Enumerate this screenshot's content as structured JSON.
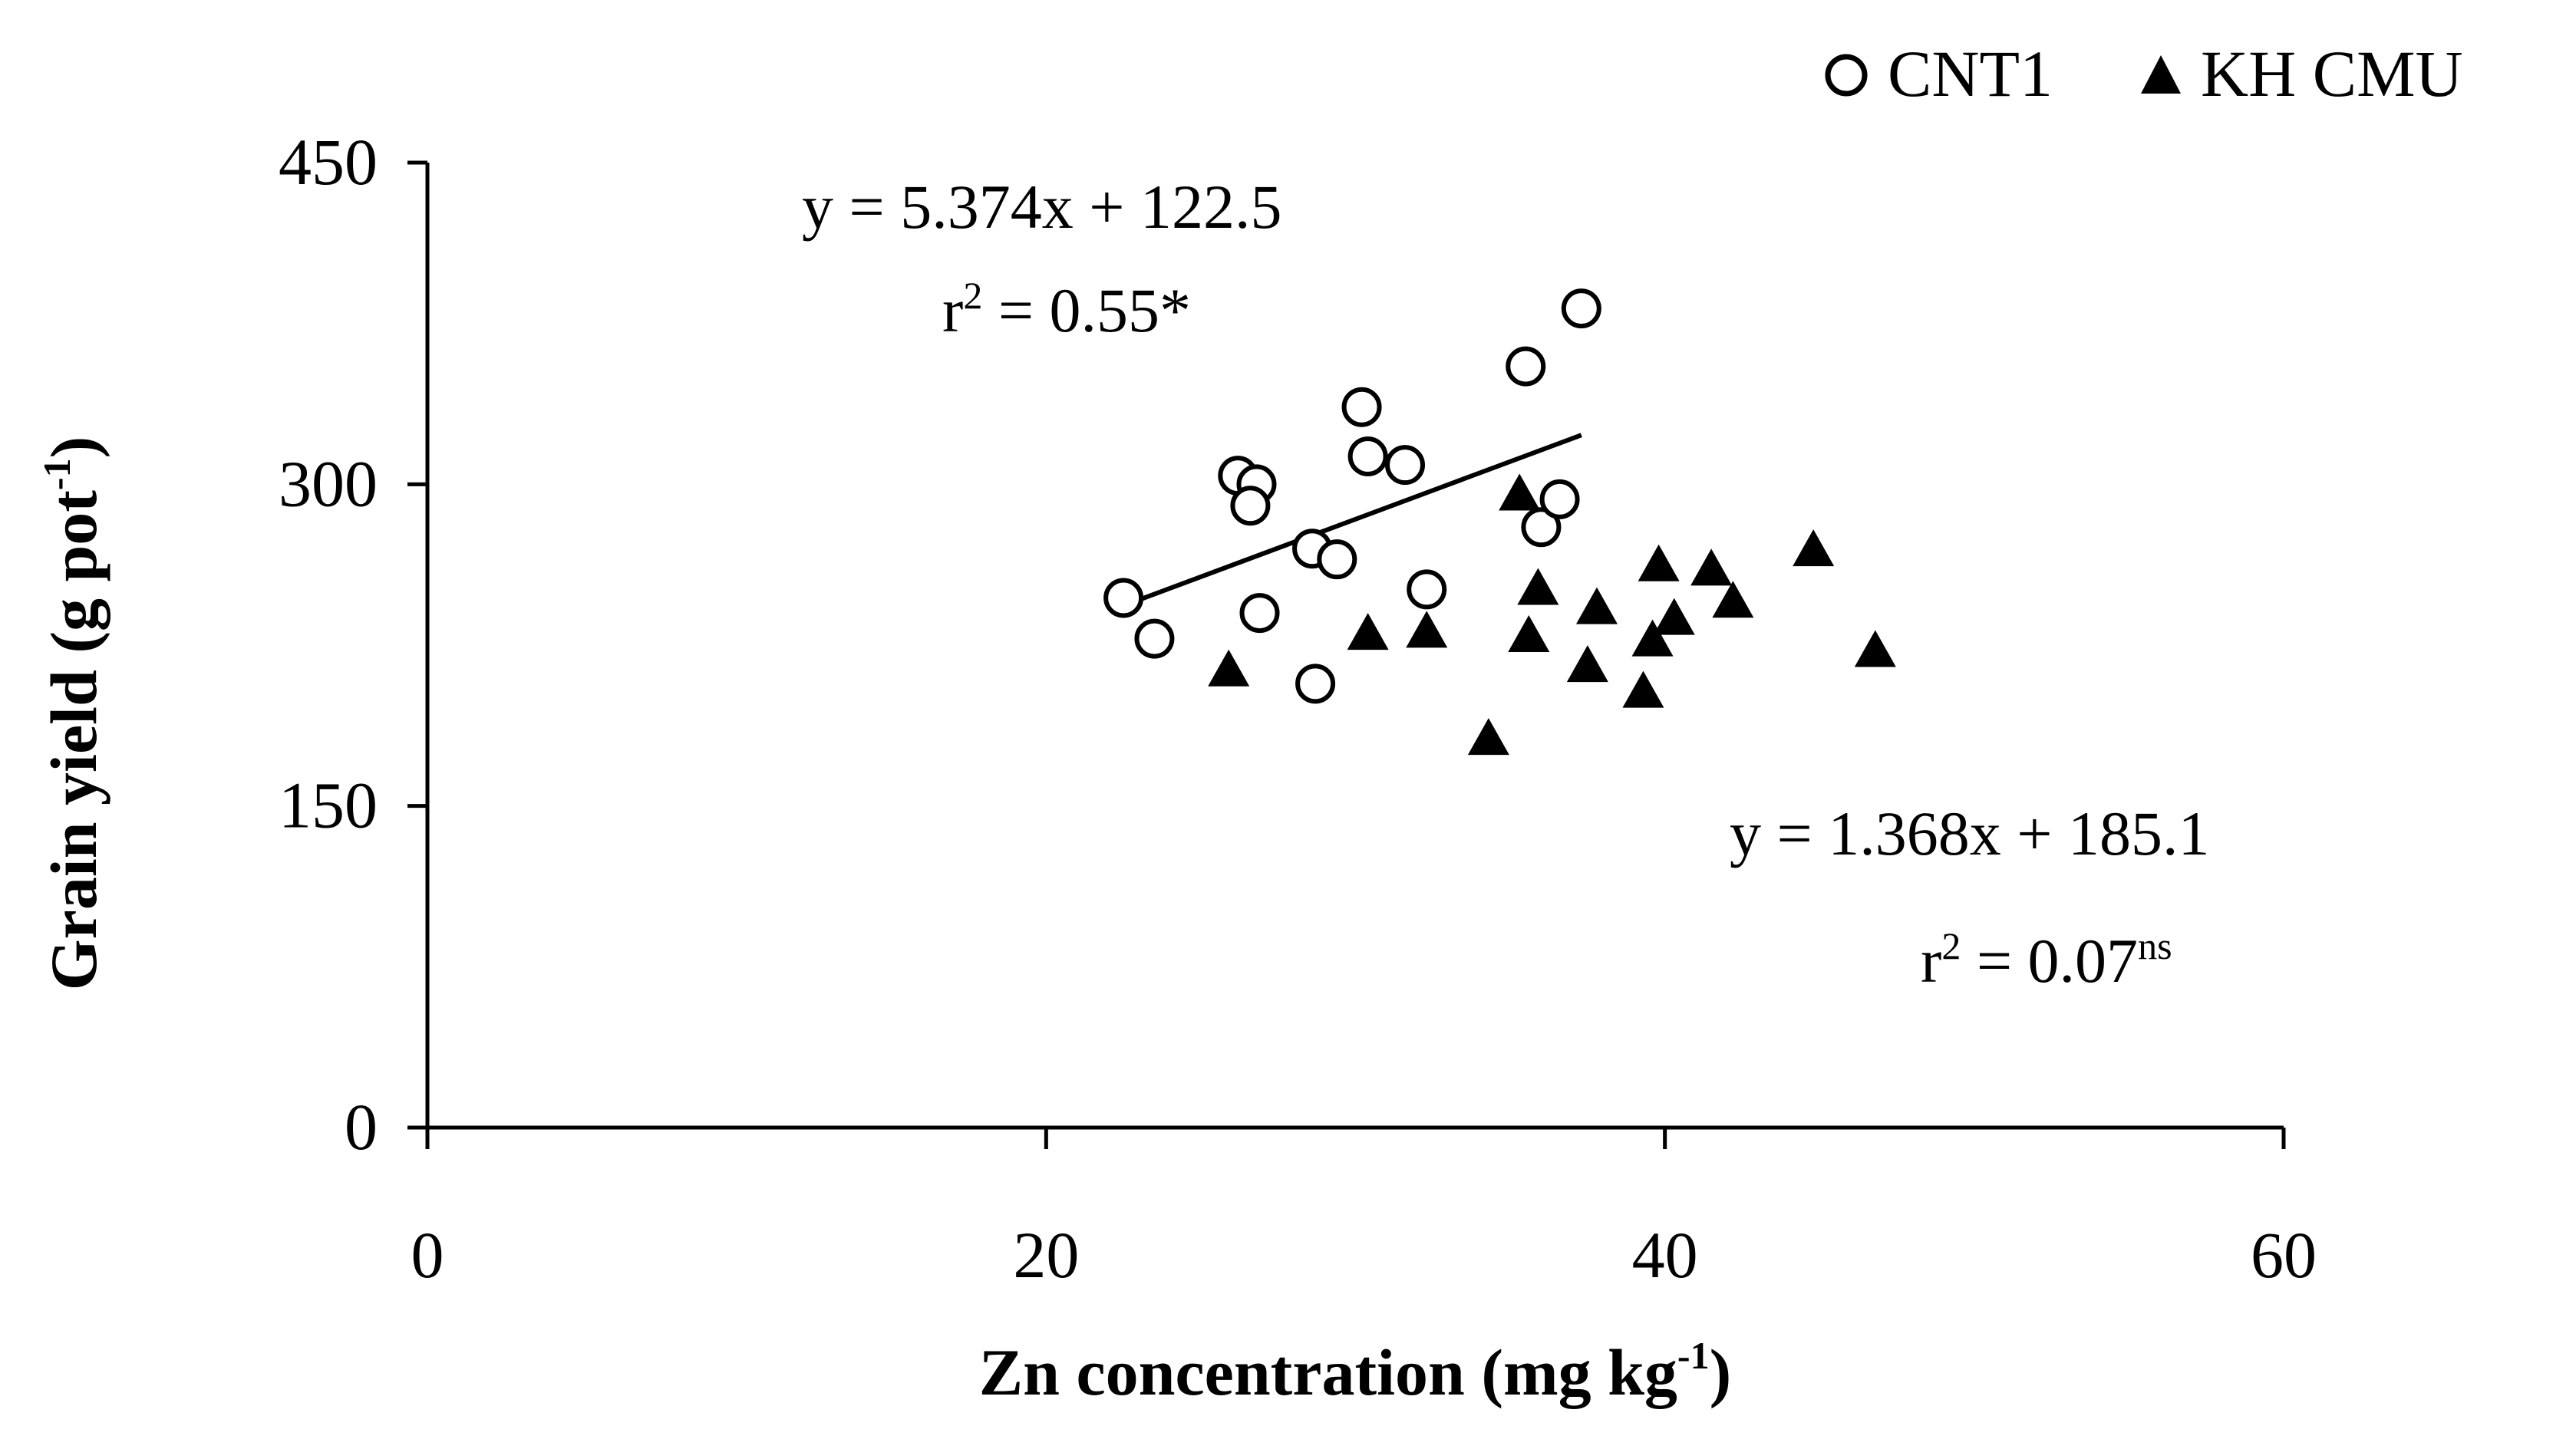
{
  "chart_data": {
    "type": "scatter",
    "title": "",
    "xlabel": {
      "main": "Zn concentration (mg kg",
      "sup": "-1",
      "end": ")"
    },
    "ylabel": {
      "main": "Grain yield (g pot",
      "sup": "-1",
      "end": ")"
    },
    "xlim": [
      0,
      60
    ],
    "ylim": [
      0,
      450
    ],
    "xticks": [
      "0",
      "20",
      "40",
      "60"
    ],
    "yticks": [
      "0",
      "150",
      "300",
      "450"
    ],
    "grid": false,
    "legend_position": "top-right",
    "series": [
      {
        "name": "CNT1",
        "marker": "open-circle",
        "x": [
          22.5,
          23.5,
          26.2,
          26.8,
          26.6,
          26.9,
          28.6,
          28.7,
          29.4,
          30.2,
          30.4,
          31.6,
          32.3,
          35.5,
          36.0,
          36.6,
          37.3
        ],
        "y": [
          247,
          228,
          304,
          300,
          290,
          240,
          270,
          207,
          265,
          336,
          313,
          309,
          251,
          355,
          280,
          293,
          382
        ],
        "trendline": {
          "slope": 5.374,
          "intercept": 122.5,
          "x_range": [
            22.5,
            37.3
          ]
        },
        "equation": "y = 5.374x + 122.5",
        "r2_label": "r",
        "r2_sup": "2",
        "r2_value": " = 0.55*"
      },
      {
        "name": "KH CMU",
        "marker": "filled-triangle",
        "x": [
          25.9,
          30.4,
          32.3,
          34.3,
          35.3,
          35.6,
          35.9,
          37.5,
          37.8,
          39.3,
          39.6,
          39.8,
          40.3,
          41.5,
          42.2,
          44.8,
          46.8
        ],
        "y": [
          213,
          230,
          231,
          181,
          295,
          229,
          251,
          215,
          242,
          203,
          227,
          262,
          237,
          260,
          245,
          269,
          222
        ],
        "equation": "y = 1.368x + 185.1",
        "r2_label": "r",
        "r2_sup": "2",
        "r2_value": " = 0.07",
        "r2_suffix": "ns"
      }
    ]
  }
}
